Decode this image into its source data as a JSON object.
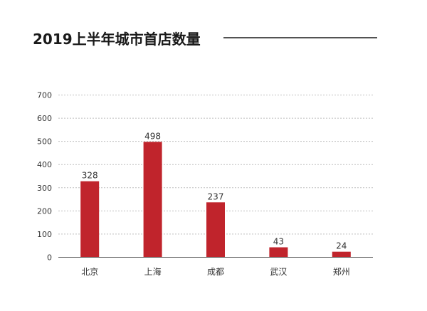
{
  "chart_data": {
    "type": "bar",
    "title": "2019上半年城市首店数量",
    "xlabel": "",
    "ylabel": "",
    "categories": [
      "北京",
      "上海",
      "成都",
      "武汉",
      "郑州"
    ],
    "values": [
      328,
      498,
      237,
      43,
      24
    ],
    "data_labels": [
      "328",
      "498",
      "237",
      "43",
      "24"
    ],
    "ylim": [
      0,
      700
    ],
    "yticks": [
      0,
      100,
      200,
      300,
      400,
      500,
      600,
      700
    ],
    "ytick_labels": [
      "0",
      "100",
      "200",
      "300",
      "400",
      "500",
      "600",
      "700"
    ],
    "grid": true,
    "legend": "none",
    "colors": {
      "bar": "#c0242c",
      "grid": "#bfbfbf",
      "axis": "#595959",
      "text": "#333333",
      "title": "#1a1a1a",
      "title_rule": "#1a1a1a"
    }
  }
}
